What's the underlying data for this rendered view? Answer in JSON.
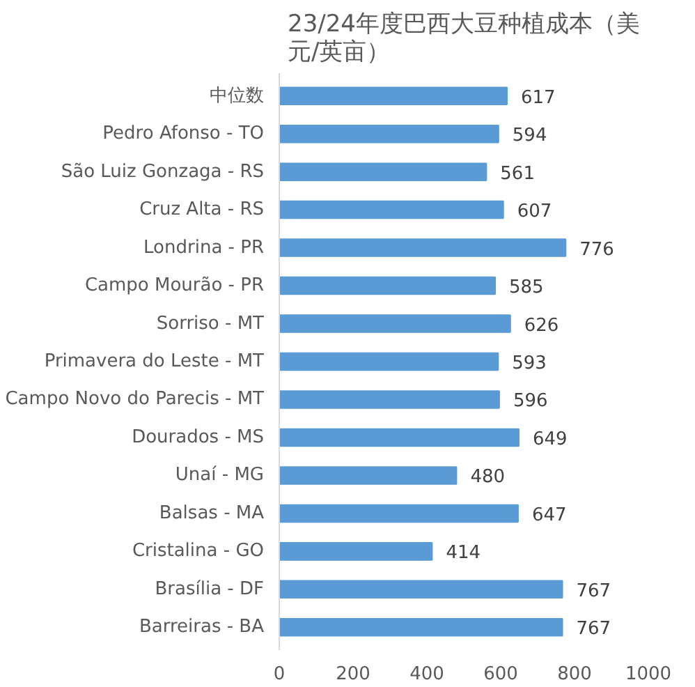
{
  "chart_data": {
    "type": "bar",
    "orientation": "horizontal",
    "title": "23/24年度巴西大豆种植成本（美元/英亩）",
    "categories": [
      "中位数",
      "Pedro Afonso - TO",
      "São Luiz Gonzaga - RS",
      "Cruz Alta - RS",
      "Londrina - PR",
      "Campo Mourão - PR",
      "Sorriso - MT",
      "Primavera do Leste - MT",
      "Campo Novo do Parecis - MT",
      "Dourados - MS",
      "Unaí - MG",
      "Balsas - MA",
      "Cristalina - GO",
      "Brasília - DF",
      "Barreiras - BA"
    ],
    "values": [
      617,
      594,
      561,
      607,
      776,
      585,
      626,
      593,
      596,
      649,
      480,
      647,
      414,
      767,
      767
    ],
    "color": "#5b9bd5",
    "xlim": [
      0,
      1000
    ],
    "xticks": [
      0,
      200,
      400,
      600,
      800,
      1000
    ],
    "data_labels": true,
    "grid": false
  }
}
